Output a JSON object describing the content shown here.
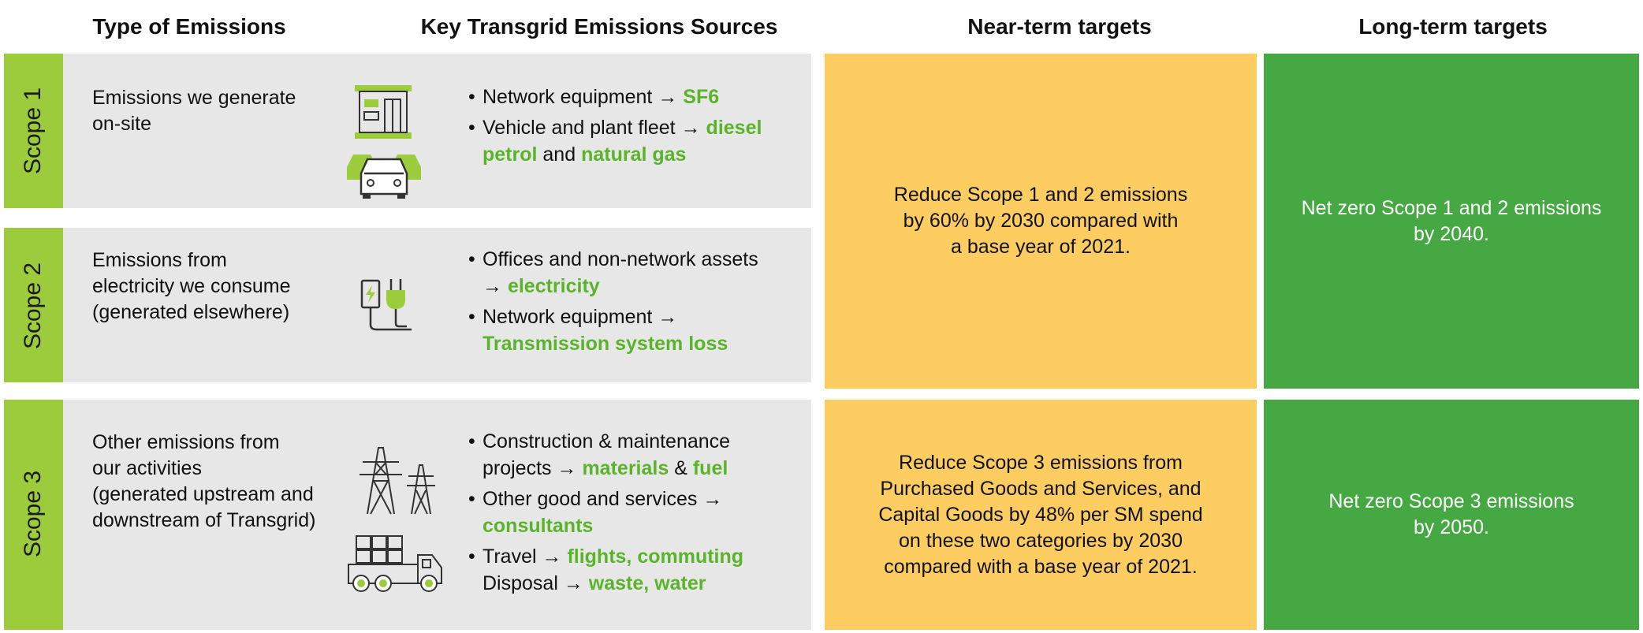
{
  "colors": {
    "lime": "#9ccc3c",
    "green_text": "#5ab42a",
    "row_grey": "#e7e7e7",
    "near_yellow": "#fdcd62",
    "long_green": "#46a843"
  },
  "headers": {
    "type": "Type of Emissions",
    "sources": "Key Transgrid Emissions Sources",
    "near": "Near-term targets",
    "long": "Long-term targets"
  },
  "arrow": "→",
  "scopes": [
    {
      "label": "Scope 1",
      "type_lines": [
        "Emissions we generate",
        "on-site"
      ],
      "icons": [
        "building-icon",
        "car-fleet-icon"
      ],
      "sources": {
        "s1_a": "Network equipment",
        "s1_a_hl": "SF6",
        "s1_b": "Vehicle and plant fleet",
        "s1_b_hl1": "diesel",
        "s1_b_hl2": "petrol",
        "s1_b_and": "and",
        "s1_b_hl3": "natural gas"
      }
    },
    {
      "label": "Scope 2",
      "type_lines": [
        "Emissions from",
        "electricity we consume",
        "(generated elsewhere)"
      ],
      "icons": [
        "ev-charger-icon"
      ],
      "sources": {
        "s2_a": "Offices and non-network assets",
        "s2_a_hl": "electricity",
        "s2_b": "Network equipment",
        "s2_b_hl": "Transmission system loss"
      }
    },
    {
      "label": "Scope 3",
      "type_lines": [
        "Other emissions from",
        "our activities",
        "(generated upstream and",
        "downstream of Transgrid)"
      ],
      "icons": [
        "transmission-tower-icon",
        "truck-icon"
      ],
      "sources": {
        "s3_a1": "Construction & maintenance",
        "s3_a2": "projects",
        "s3_a_hl1": "materials",
        "s3_a_amp": "&",
        "s3_a_hl2": "fuel",
        "s3_b": "Other good and services",
        "s3_b_hl": "consultants",
        "s3_c": "Travel",
        "s3_c_hl": "flights, commuting",
        "s3_d": "Disposal",
        "s3_d_hl": "waste, water"
      }
    }
  ],
  "targets": {
    "near_12": [
      "Reduce Scope 1 and 2 emissions",
      "by 60% by 2030 compared with",
      "a base year of 2021."
    ],
    "long_12": [
      "Net zero Scope 1 and 2 emissions",
      "by 2040."
    ],
    "near_3": [
      "Reduce Scope 3 emissions from",
      "Purchased Goods and Services, and",
      "Capital Goods by 48% per SM spend",
      "on these two categories by 2030",
      "compared with a base year of 2021."
    ],
    "long_3": [
      "Net zero Scope 3 emissions",
      "by 2050."
    ]
  }
}
